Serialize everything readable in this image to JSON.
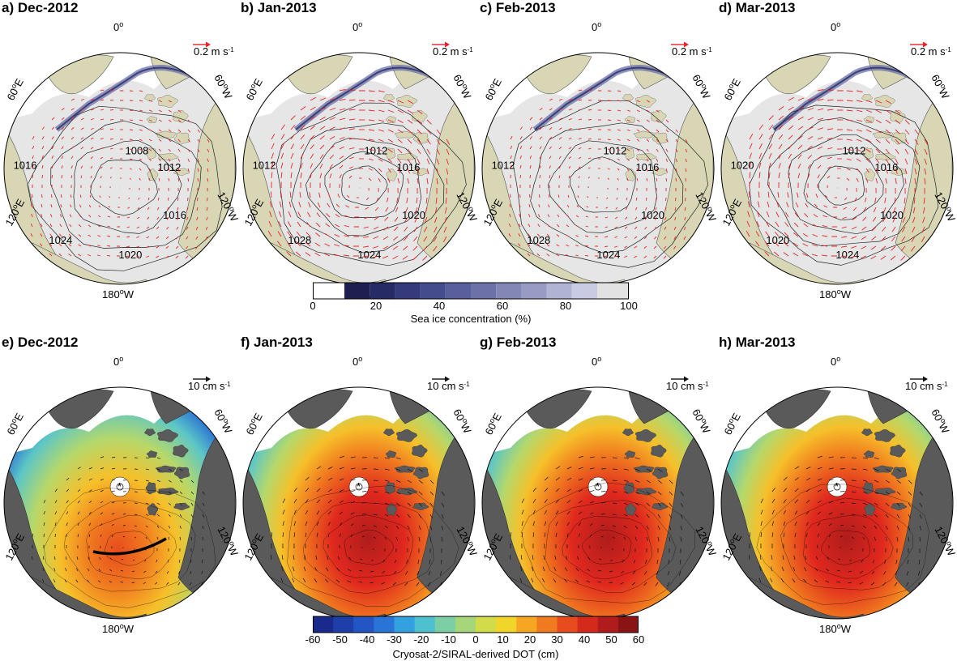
{
  "panels": [
    {
      "title": "a) Dec-2012",
      "kind": "ice",
      "ref_label": "0.2 m s",
      "ref_exp": "-1",
      "isobars": [
        "1008",
        "1012",
        "1016",
        "1020",
        "1024",
        "1016"
      ],
      "gyre": "weak"
    },
    {
      "title": "b) Jan-2013",
      "kind": "ice",
      "ref_label": "0.2 m s",
      "ref_exp": "-1",
      "isobars": [
        "1012",
        "1016",
        "1020",
        "1024",
        "1028",
        "1012"
      ],
      "gyre": "strong"
    },
    {
      "title": "c) Feb-2013",
      "kind": "ice",
      "ref_label": "0.2 m s",
      "ref_exp": "-1",
      "isobars": [
        "1012",
        "1016",
        "1020",
        "1024",
        "1028",
        "1012"
      ],
      "gyre": "weak"
    },
    {
      "title": "d) Mar-2013",
      "kind": "ice",
      "ref_label": "0.2 m s",
      "ref_exp": "-1",
      "isobars": [
        "1012",
        "1016",
        "1020",
        "1024",
        "1020",
        "1020"
      ],
      "gyre": "strong"
    },
    {
      "title": "e) Dec-2012",
      "kind": "dot",
      "ref_label": "10 cm s",
      "ref_exp": "-1",
      "gyre": "weak",
      "transect": true
    },
    {
      "title": "f) Jan-2013",
      "kind": "dot",
      "ref_label": "10 cm s",
      "ref_exp": "-1",
      "gyre": "strong",
      "transect": false
    },
    {
      "title": "g) Feb-2013",
      "kind": "dot",
      "ref_label": "10 cm s",
      "ref_exp": "-1",
      "gyre": "strong",
      "transect": false
    },
    {
      "title": "h) Mar-2013",
      "kind": "dot",
      "ref_label": "10 cm s",
      "ref_exp": "-1",
      "gyre": "strong",
      "transect": false
    }
  ],
  "map_labels": {
    "top": "0",
    "top_sup": "o",
    "left_upper": "60",
    "left_upper_suffix": "E",
    "right_upper": "60",
    "right_upper_suffix": "W",
    "left_lower": "120",
    "left_lower_suffix": "E",
    "right_lower": "120",
    "right_lower_suffix": "W",
    "bottom": "180",
    "bottom_suffix": "W"
  },
  "ice_colorbar": {
    "label": "Sea ice concentration (%)",
    "ticks": [
      "0",
      "20",
      "40",
      "60",
      "80",
      "100"
    ],
    "colors": [
      "#ffffff",
      "#1c1f4f",
      "#262b66",
      "#343a7c",
      "#454c8d",
      "#585f9b",
      "#6c72a8",
      "#8287b6",
      "#989cc4",
      "#b0b3d3",
      "#c9cbe2",
      "#e2e2e2"
    ]
  },
  "dot_colorbar": {
    "label": "Cryosat-2/SIRAL-derived DOT (cm)",
    "ticks": [
      "-60",
      "-50",
      "-40",
      "-30",
      "-20",
      "-10",
      "0",
      "10",
      "20",
      "30",
      "40",
      "50",
      "60"
    ],
    "colors": [
      "#1a2a8c",
      "#1f3fa8",
      "#2356c4",
      "#2a74d8",
      "#33a0e0",
      "#4fc0d0",
      "#7ccfa4",
      "#a6d67a",
      "#d2dc4a",
      "#f2d52a",
      "#f6a623",
      "#f07a1f",
      "#e84c1e",
      "#d42a1c",
      "#b01c1c",
      "#8a1414"
    ]
  },
  "colors": {
    "land_ice_panels": "#d8d6b4",
    "ocean_ice": "#e6e6e6",
    "atlantic_white": "#ffffff",
    "land_dot_panels": "#5a5a5a",
    "vector_red": "#e8242a",
    "vector_black": "#111111",
    "isobar": "#222222"
  }
}
